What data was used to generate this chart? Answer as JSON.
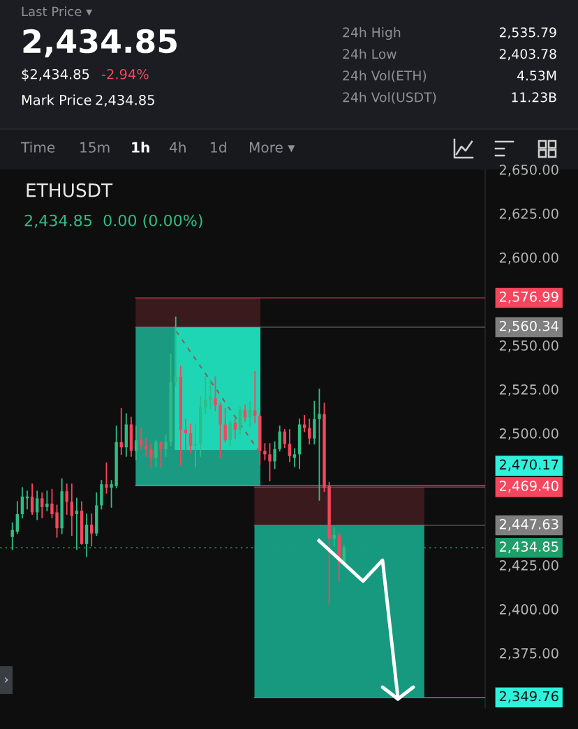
{
  "chart_data": {
    "type": "candlestick",
    "title": "ETHUSDT",
    "subtitle": "2,434.85  0.00 (0.00%)",
    "annotations": [
      "Last Price ▾",
      "2,434.85",
      "$2,434.85",
      "-2.94%",
      "Mark Price",
      "2,434.85",
      "24h High",
      "2,535.79",
      "24h Low",
      "2,403.78",
      "24h Vol(ETH)",
      "4.53M",
      "24h Vol(USDT)",
      "11.23B",
      "Time",
      "15m",
      "1h",
      "4h",
      "1d",
      "More ▾",
      "›"
    ],
    "categories": [
      null,
      null,
      null,
      null,
      null,
      null,
      null,
      null,
      null,
      null,
      null,
      null,
      null,
      null,
      null,
      null,
      null,
      null,
      null,
      null,
      null,
      null,
      null,
      null,
      null,
      null,
      null,
      null,
      null,
      null,
      null,
      null,
      null,
      null,
      null,
      null,
      null,
      null,
      null,
      null,
      null,
      null,
      null,
      null,
      null,
      null,
      null,
      null,
      null,
      null,
      null,
      null,
      null,
      null,
      null,
      null,
      null,
      null,
      null,
      null,
      null,
      null,
      null,
      null,
      null,
      null,
      null,
      null,
      null,
      null,
      null,
      null,
      null,
      null,
      null,
      null,
      null,
      null,
      null,
      null,
      null,
      null,
      null,
      null,
      null,
      null,
      null,
      null,
      null,
      null,
      null,
      null,
      null,
      null,
      null,
      null,
      null,
      null
    ],
    "ohlc": [
      null,
      null,
      [
        2441,
        2449,
        2434,
        2445
      ],
      [
        2444,
        2461,
        2443,
        2454
      ],
      [
        2454,
        2469,
        2452,
        2464
      ],
      [
        2463,
        2467,
        2457,
        2464
      ],
      [
        2464,
        2471,
        2454,
        2455
      ],
      [
        2455,
        2467,
        2451,
        2463
      ],
      [
        2463,
        2466,
        2452,
        2458
      ],
      [
        2458,
        2467,
        2456,
        2460
      ],
      [
        2460,
        2468,
        2452,
        2454
      ],
      [
        2455,
        2459,
        2441,
        2446
      ],
      [
        2446,
        2474,
        2443,
        2467
      ],
      [
        2467,
        2471,
        2454,
        2461
      ],
      [
        2461,
        2471,
        2442,
        2453
      ],
      [
        2454,
        2463,
        2434,
        2456
      ],
      [
        2456,
        2461,
        2437,
        2437
      ],
      [
        2437,
        2454,
        2430,
        2448
      ],
      [
        2448,
        2454,
        2436,
        2443
      ],
      [
        2443,
        2466,
        2442,
        2459
      ],
      [
        2459,
        2473,
        2457,
        2471
      ],
      [
        2471,
        2483,
        2466,
        2469
      ],
      [
        2469,
        2473,
        2458,
        2471
      ],
      [
        2470,
        2504,
        2469,
        2495
      ],
      [
        2495,
        2514,
        2488,
        2492
      ],
      [
        2492,
        2511,
        2487,
        2505
      ],
      [
        2505,
        2509,
        2487,
        2490
      ],
      [
        2490,
        2504,
        2485,
        2496
      ],
      [
        2496,
        2503,
        2491,
        2493
      ],
      [
        2493,
        2497,
        2487,
        2491
      ],
      [
        2491,
        2494,
        2481,
        2486
      ],
      [
        2486,
        2496,
        2481,
        2495
      ],
      [
        2495,
        2495,
        2481,
        2491
      ],
      [
        2491,
        2499,
        2487,
        2495
      ],
      [
        2495,
        2545,
        2493,
        2529
      ],
      [
        2529,
        2566,
        2527,
        2532
      ],
      [
        2532,
        2538,
        2482,
        2502
      ],
      [
        2502,
        2508,
        2490,
        2500
      ],
      [
        2500,
        2505,
        2489,
        2493
      ],
      [
        2493,
        2505,
        2481,
        2494
      ],
      [
        2494,
        2521,
        2487,
        2515
      ],
      [
        2515,
        2532,
        2511,
        2519
      ],
      [
        2519,
        2530,
        2514,
        2521
      ],
      [
        2520,
        2532,
        2513,
        2516
      ],
      [
        2516,
        2517,
        2486,
        2505
      ],
      [
        2505,
        2514,
        2495,
        2496
      ],
      [
        2496,
        2507,
        2493,
        2506
      ],
      [
        2506,
        2508,
        2497,
        2502
      ],
      [
        2502,
        2515,
        2500,
        2513
      ],
      [
        2513,
        2516,
        2507,
        2509
      ],
      [
        2509,
        2518,
        2504,
        2513
      ],
      [
        2513,
        2535,
        2506,
        2510
      ],
      [
        2510,
        2511,
        2482,
        2490
      ],
      [
        2490,
        2494,
        2485,
        2488
      ],
      [
        2488,
        2494,
        2473,
        2484
      ],
      [
        2484,
        2495,
        2480,
        2491
      ],
      [
        2491,
        2504,
        2490,
        2501
      ],
      [
        2501,
        2502,
        2492,
        2494
      ],
      [
        2494,
        2502,
        2484,
        2487
      ],
      [
        2486,
        2491,
        2481,
        2488
      ],
      [
        2488,
        2508,
        2480,
        2505
      ],
      [
        2505,
        2510,
        2501,
        2503
      ],
      [
        2503,
        2508,
        2494,
        2497
      ],
      [
        2497,
        2518,
        2494,
        2508
      ],
      [
        2508,
        2525,
        2462,
        2511
      ],
      [
        2511,
        2517,
        2467,
        2469
      ],
      [
        2470,
        2472,
        2403,
        2440
      ],
      [
        2440,
        2446,
        2436,
        2442
      ],
      [
        2442,
        2443,
        2416,
        2426
      ],
      [
        2426,
        2436,
        2425,
        2434.85
      ],
      null,
      null,
      null,
      null,
      null,
      null,
      null,
      null,
      null,
      null,
      null,
      null,
      null,
      null,
      null,
      null,
      null,
      null,
      null,
      null,
      null,
      null,
      null,
      null,
      null,
      null,
      null,
      null
    ],
    "ylim": [
      2343.7,
      2650
    ],
    "yticks": [
      {
        "value": 2375,
        "label": "2,375.00"
      },
      {
        "value": 2400,
        "label": "2,400.00"
      },
      {
        "value": 2425,
        "label": "2,425.00"
      },
      {
        "value": 2500,
        "label": "2,500.00"
      },
      {
        "value": 2525,
        "label": "2,525.00"
      },
      {
        "value": 2550,
        "label": "2,550.00"
      },
      {
        "value": 2600,
        "label": "2,600.00"
      },
      {
        "value": 2625,
        "label": "2,625.00"
      },
      {
        "value": 2650,
        "label": "2,650.00"
      }
    ],
    "ref_lines": [
      {
        "axis": "y",
        "value": 2576.99,
        "label": "2,576.99",
        "color": "#f6465d",
        "line_style": "solid"
      },
      {
        "axis": "y",
        "value": 2560.34,
        "label": "2,560.34",
        "color": "#7f7f7f",
        "line_style": "solid"
      },
      {
        "axis": "y",
        "value": 2470.17,
        "label": "2,470.17",
        "color": "#2ef2dc",
        "line_style": "solid"
      },
      {
        "axis": "y",
        "value": 2469.4,
        "label": "2,469.40",
        "color": "#f6465d",
        "line_style": "solid"
      },
      {
        "axis": "y",
        "value": 2447.63,
        "label": "2,447.63",
        "color": "#7f7f7f",
        "line_style": "solid"
      },
      {
        "axis": "y",
        "value": 2434.85,
        "label": "2,434.85",
        "color": "#1f9e6a",
        "line_style": "dotted"
      },
      {
        "axis": "y",
        "value": 2349.76,
        "label": "2,349.76",
        "color": "#2ef2dc",
        "line_style": "solid"
      }
    ],
    "grid": false
  }
}
